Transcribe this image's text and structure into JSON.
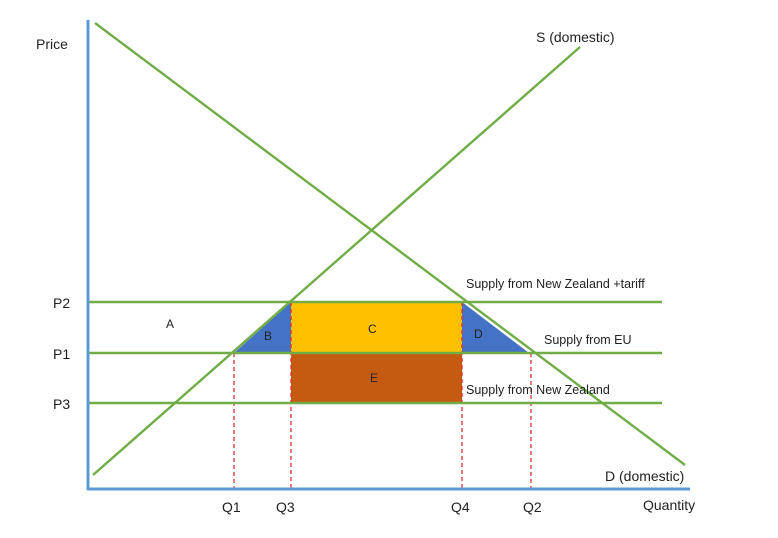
{
  "axes": {
    "y_label": "Price",
    "x_label": "Quantity",
    "color": "#5b9bd5"
  },
  "curves": {
    "supply_domestic": "S (domestic)",
    "demand_domestic": "D (domestic)",
    "line_color": "#70ad47"
  },
  "price_levels": [
    {
      "id": "p2",
      "tick": "P2",
      "label": "Supply from New Zealand +tariff"
    },
    {
      "id": "p1",
      "tick": "P1",
      "label": "Supply from EU"
    },
    {
      "id": "p3",
      "tick": "P3",
      "label": "Supply from New Zealand"
    }
  ],
  "quantity_ticks": [
    "Q1",
    "Q3",
    "Q4",
    "Q2"
  ],
  "areas": [
    {
      "id": "A",
      "label": "A",
      "color": "none"
    },
    {
      "id": "B",
      "label": "B",
      "color": "#4472c4"
    },
    {
      "id": "C",
      "label": "C",
      "color": "#ffc000"
    },
    {
      "id": "D",
      "label": "D",
      "color": "#4472c4"
    },
    {
      "id": "E",
      "label": "E",
      "color": "#c55a11"
    }
  ],
  "guide_color": "#e03030"
}
